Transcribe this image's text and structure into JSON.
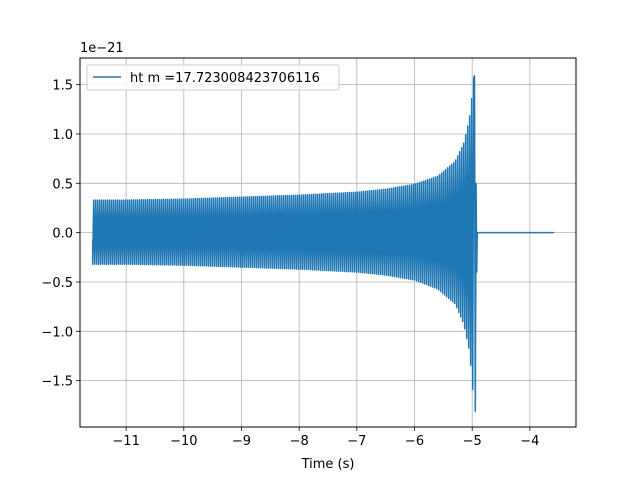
{
  "chart_data": {
    "type": "line",
    "title": "",
    "xlabel": "Time (s)",
    "ylabel": "",
    "offset_text": "1e−21",
    "y_multiplier": 1e-21,
    "xlim": [
      -11.8,
      -3.2
    ],
    "ylim": [
      -1.97,
      1.77
    ],
    "grid": true,
    "legend_position": "upper-left",
    "x_ticks": [
      -11,
      -10,
      -9,
      -8,
      -7,
      -6,
      -5,
      -4
    ],
    "x_tick_labels": [
      "−11",
      "−10",
      "−9",
      "−8",
      "−7",
      "−6",
      "−5",
      "−4"
    ],
    "y_ticks": [
      -1.5,
      -1.0,
      -0.5,
      0.0,
      0.5,
      1.0,
      1.5
    ],
    "y_tick_labels": [
      "−1.5",
      "−1.0",
      "−0.5",
      "0.0",
      "0.5",
      "1.0",
      "1.5"
    ],
    "series": [
      {
        "name": "ht m =17.723008423706116",
        "color": "#1f77b4",
        "start_time": -11.58,
        "merger_time": -4.96,
        "end_time": -3.58,
        "envelope": {
          "t": [
            -11.55,
            -11.0,
            -10.0,
            -9.0,
            -8.0,
            -7.0,
            -6.5,
            -6.0,
            -5.6,
            -5.3,
            -5.15,
            -5.05,
            -5.0,
            -4.97
          ],
          "upper": [
            0.33,
            0.33,
            0.34,
            0.36,
            0.38,
            0.41,
            0.44,
            0.49,
            0.57,
            0.72,
            0.9,
            1.15,
            1.4,
            1.59
          ],
          "lower": [
            -0.32,
            -0.32,
            -0.33,
            -0.35,
            -0.37,
            -0.4,
            -0.43,
            -0.48,
            -0.57,
            -0.72,
            -0.92,
            -1.2,
            -1.5,
            -1.81
          ]
        }
      }
    ]
  }
}
